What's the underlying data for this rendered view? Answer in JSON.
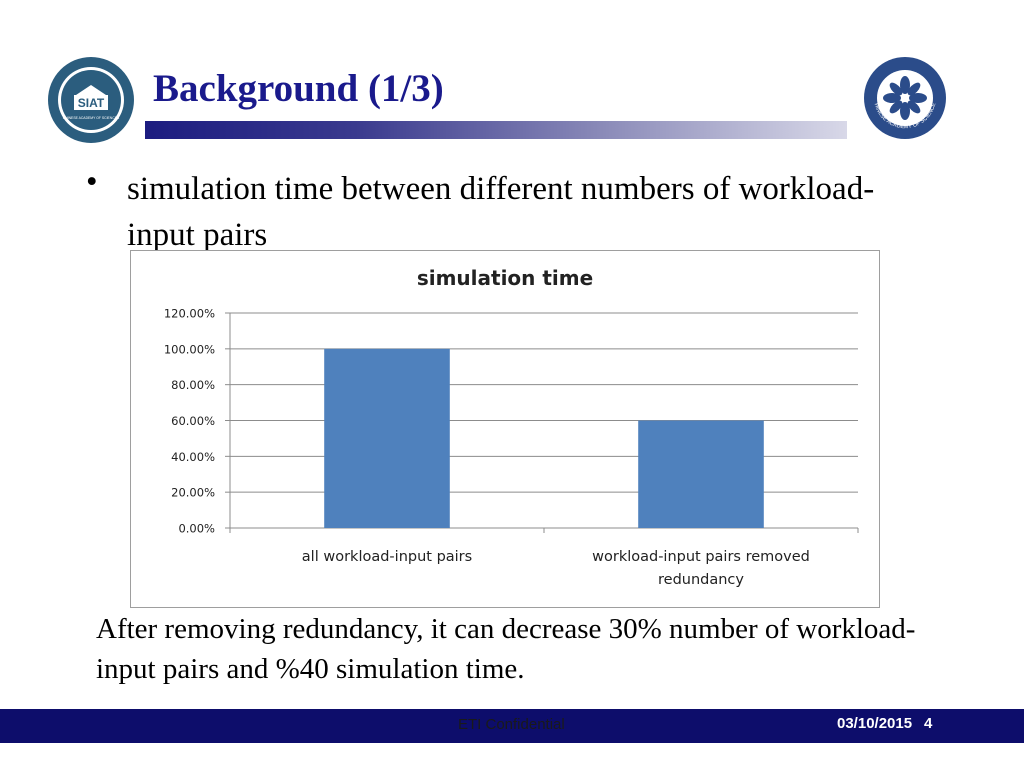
{
  "slide": {
    "title": "Background (1/3)",
    "bullet": "simulation time between different  numbers of workload-input pairs",
    "caption": "After removing redundancy, it can decrease 30% number of workload-input pairs and %40 simulation time.",
    "logos": {
      "left": {
        "text": "SIAT",
        "subtext": "CHINESE ACADEMY OF SCIENCES",
        "icon": "siat-logo-icon"
      },
      "right": {
        "text": "CHINESE ACADEMY OF SCIENCES",
        "icon": "cas-logo-icon"
      }
    }
  },
  "footer": {
    "center": "ETI Confidential",
    "date": "03/10/2015",
    "page": "4"
  },
  "colors": {
    "title": "#1a1a8c",
    "footer_bg": "#0d0d6b",
    "bar": "#4f81bd",
    "logo": "#2b4c8a"
  },
  "chart_data": {
    "type": "bar",
    "title": "simulation time",
    "categories": [
      "all workload-input pairs",
      "workload-input pairs removed redundancy"
    ],
    "values": [
      1.0,
      0.6
    ],
    "yticks": [
      "0.00%",
      "20.00%",
      "40.00%",
      "60.00%",
      "80.00%",
      "100.00%",
      "120.00%"
    ],
    "ylim": [
      0,
      1.2
    ],
    "xlabel": "",
    "ylabel": "",
    "grid": true,
    "legend": "none"
  }
}
